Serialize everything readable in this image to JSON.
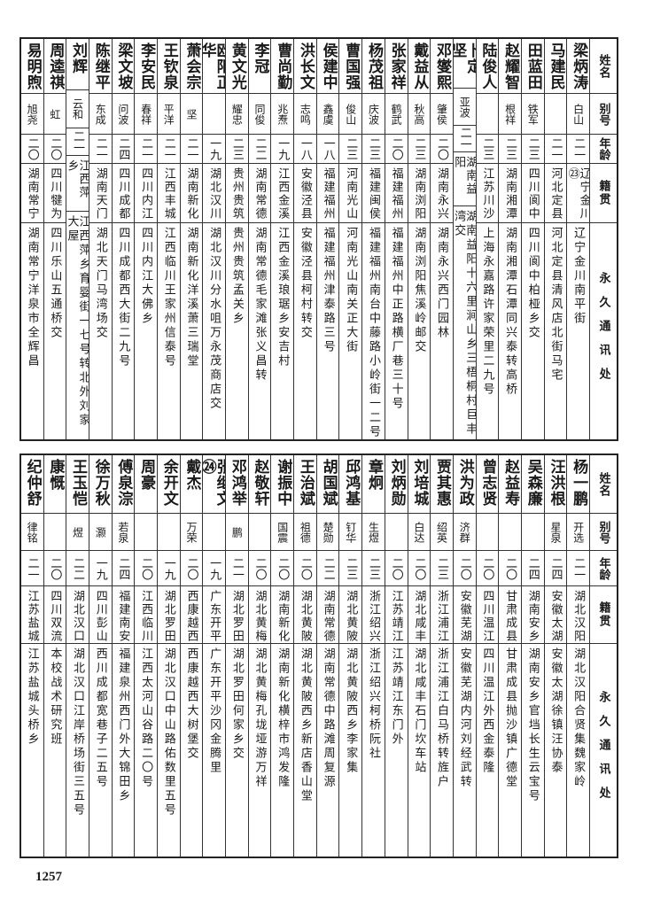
{
  "headers": {
    "name": "姓名",
    "alias": "别号",
    "age": "年龄",
    "origin": "籍贯",
    "address": "永久通讯处"
  },
  "table_top": [
    {
      "name": "梁炳涛",
      "alias": "白山",
      "age": "二一",
      "origin": "辽宁金川㉓",
      "address": "辽宁金川南平街"
    },
    {
      "name": "马建民",
      "alias": "",
      "age": "二一",
      "origin": "河北定县",
      "address": "河北定县清风店北街马宅"
    },
    {
      "name": "田蓝田",
      "alias": "铁军",
      "age": "二三",
      "origin": "四川阆中",
      "address": "四川阆中柏桠乡交"
    },
    {
      "name": "赵耀智",
      "alias": "根祥",
      "age": "二三",
      "origin": "湖南湘潭",
      "address": "湖南湘潭石潭同兴泰转高桥"
    },
    {
      "name": "陆俊人",
      "alias": "",
      "age": "二三",
      "origin": "江苏川沙",
      "address": "上海永嘉路许家荣里二九号"
    },
    {
      "name": "卜定坚",
      "alias": "亚波",
      "age": "二一",
      "origin": "湖南益阳",
      "address": "湖南益阳十六里涧山乡三梧桐村巨丰湾交"
    },
    {
      "name": "邓燮熙",
      "alias": "肇侯",
      "age": "二〇",
      "origin": "湖南永兴",
      "address": "湖南永兴西门园林"
    },
    {
      "name": "戴益从",
      "alias": "秋高",
      "age": "二三",
      "origin": "湖南浏阳",
      "address": "湖南浏阳焦溪岭邮交"
    },
    {
      "name": "张家祥",
      "alias": "鹤武",
      "age": "二〇",
      "origin": "福建福州",
      "address": "福建福州中正路横厂巷三十号"
    },
    {
      "name": "杨茂祖",
      "alias": "庆波",
      "age": "二三",
      "origin": "福建闽侯",
      "address": "福建福州南台中藤路小岭街一二号"
    },
    {
      "name": "曹国强",
      "alias": "俊山",
      "age": "二三",
      "origin": "河南光山",
      "address": "河南光山南关正大街"
    },
    {
      "name": "侯建中",
      "alias": "鑫虞",
      "age": "一八",
      "origin": "福建福州",
      "address": "福建福州津泰路三号"
    },
    {
      "name": "洪长文",
      "alias": "志鸣",
      "age": "一八",
      "origin": "安徽泾县",
      "address": "安徽泾县柯村转交"
    },
    {
      "name": "曹尚勤",
      "alias": "兆焘",
      "age": "一九",
      "origin": "江西金溪",
      "address": "江西金溪琅琚乡安吉村"
    },
    {
      "name": "李冠",
      "alias": "同俊",
      "age": "二二",
      "origin": "湖南常德",
      "address": "湖南常德毛家滩张义昌转"
    },
    {
      "name": "黄文光",
      "alias": "耀忠",
      "age": "二三",
      "origin": "贵州贵筑",
      "address": "贵州贵筑孟关乡"
    },
    {
      "name": "欧阳正华",
      "alias": "",
      "age": "一九",
      "origin": "湖北汉川",
      "address": "湖北汉川分水咀万永茂商店交"
    },
    {
      "name": "萧会宗",
      "alias": "坚",
      "age": "二一",
      "origin": "湖南新化",
      "address": "湖南新化洋溪萧三瑞堂"
    },
    {
      "name": "王钦泉",
      "alias": "平洋",
      "age": "二一",
      "origin": "江西丰城",
      "address": "江西临川王家州信泰号"
    },
    {
      "name": "李安民",
      "alias": "春祥",
      "age": "二一",
      "origin": "四川内江",
      "address": "四川内江大佛乡"
    },
    {
      "name": "梁文坡",
      "alias": "问波",
      "age": "二四",
      "origin": "四川成都",
      "address": "四川成都西大街二九号"
    },
    {
      "name": "陈继平",
      "alias": "东成",
      "age": "二一",
      "origin": "湖南天门",
      "address": "湖北天门马湾场交"
    },
    {
      "name": "刘辉",
      "alias": "云和",
      "age": "二一",
      "origin": "江西萍乡",
      "address": "江西萍乡育婴街一七号转北外刘家大屋"
    },
    {
      "name": "周逵祺",
      "alias": "虹",
      "age": "二〇",
      "origin": "四川犍为",
      "address": "四川乐山五通桥交"
    },
    {
      "name": "易明煦",
      "alias": "旭尧",
      "age": "二〇",
      "origin": "湖南常宁",
      "address": "湖南常宁洋泉市全辉昌"
    }
  ],
  "table_bottom": [
    {
      "name": "杨一鹏",
      "alias": "开选",
      "age": "二一",
      "origin": "湖北汉阳",
      "address": "湖北汉阳合贤集魏家岭"
    },
    {
      "name": "汪洪根",
      "alias": "星泉",
      "age": "二四",
      "origin": "安徽太湖",
      "address": "安徽太湖徐镇汪协泰"
    },
    {
      "name": "吴森廉",
      "alias": "",
      "age": "二四",
      "origin": "湖南安乡",
      "address": "湖南安乡官垱长生云宝号"
    },
    {
      "name": "赵益寿",
      "alias": "",
      "age": "二〇",
      "origin": "甘肃成县",
      "address": "甘肃成县抛沙镇广德堂"
    },
    {
      "name": "曾志贤",
      "alias": "",
      "age": "二〇",
      "origin": "四川温江",
      "address": "四川温江外西金泰隆"
    },
    {
      "name": "洪为政",
      "alias": "济群",
      "age": "二〇",
      "origin": "安徽芜湖",
      "address": "安徽芜湖内河刘经武转"
    },
    {
      "name": "贾其惠",
      "alias": "绍英",
      "age": "二三",
      "origin": "浙江浦江",
      "address": "浙江浦江白马桥转旌户"
    },
    {
      "name": "刘培城",
      "alias": "白达",
      "age": "二〇",
      "origin": "湖北咸丰",
      "address": "湖北咸丰石门坎车站"
    },
    {
      "name": "刘炳勋",
      "alias": "",
      "age": "二〇",
      "origin": "江苏靖江",
      "address": "江苏靖江东门外"
    },
    {
      "name": "章炯",
      "alias": "生煜",
      "age": "二三",
      "origin": "浙江绍兴",
      "address": "浙江绍兴柯桥阮社"
    },
    {
      "name": "邱鸿基",
      "alias": "钉华",
      "age": "二三",
      "origin": "湖北黄陂",
      "address": "湖北黄陂西乡李家集"
    },
    {
      "name": "胡国斌",
      "alias": "楚勋",
      "age": "二二",
      "origin": "湖南常德",
      "address": "湖南常德中路滩周复源"
    },
    {
      "name": "王治斌",
      "alias": "祖德",
      "age": "二〇",
      "origin": "湖北黄陂",
      "address": "湖北黄陂西乡新店香山堂"
    },
    {
      "name": "谢振中",
      "alias": "国震",
      "age": "二〇",
      "origin": "湖南新化",
      "address": "湖南新化横梓市鸿发隆"
    },
    {
      "name": "赵敬轩",
      "alias": "",
      "age": "二〇",
      "origin": "湖北黄梅",
      "address": "湖北黄梅孔垅垭游万祥"
    },
    {
      "name": "邓鸿举",
      "alias": "鹏",
      "age": "二一",
      "origin": "湖北罗田",
      "address": "湖北罗田何家乡交"
    },
    {
      "name": "张继文㉔",
      "alias": "",
      "age": "一九",
      "origin": "广东开平",
      "address": "广东开平沙冈金腾里"
    },
    {
      "name": "戴杰",
      "alias": "万荣",
      "age": "二〇",
      "origin": "西康越西",
      "address": "西康越西大树堡交"
    },
    {
      "name": "余开文",
      "alias": "",
      "age": "一九",
      "origin": "湖北罗田",
      "address": "湖北汉口中山路佑数里五号"
    },
    {
      "name": "周豪",
      "alias": "",
      "age": "二〇",
      "origin": "江西临川",
      "address": "江西太河山谷路二〇号"
    },
    {
      "name": "傅泉淙",
      "alias": "若泉",
      "age": "二四",
      "origin": "福建南安",
      "address": "福建泉州西门外大锦田乡"
    },
    {
      "name": "徐万秋",
      "alias": "灏",
      "age": "一九",
      "origin": "四川彭山",
      "address": "西川成都宽巷子二五号"
    },
    {
      "name": "王玉恺",
      "alias": "煜",
      "age": "二二",
      "origin": "湖北汉口",
      "address": "湖北汉口江岸桥场街三五号"
    },
    {
      "name": "康慨",
      "alias": "",
      "age": "二〇",
      "origin": "四川双流",
      "address": "本校战术研究班"
    },
    {
      "name": "纪仲舒",
      "alias": "律铭",
      "age": "二一",
      "origin": "江苏盐城",
      "address": "江苏盐城头桥乡"
    }
  ],
  "page_number": "1257"
}
